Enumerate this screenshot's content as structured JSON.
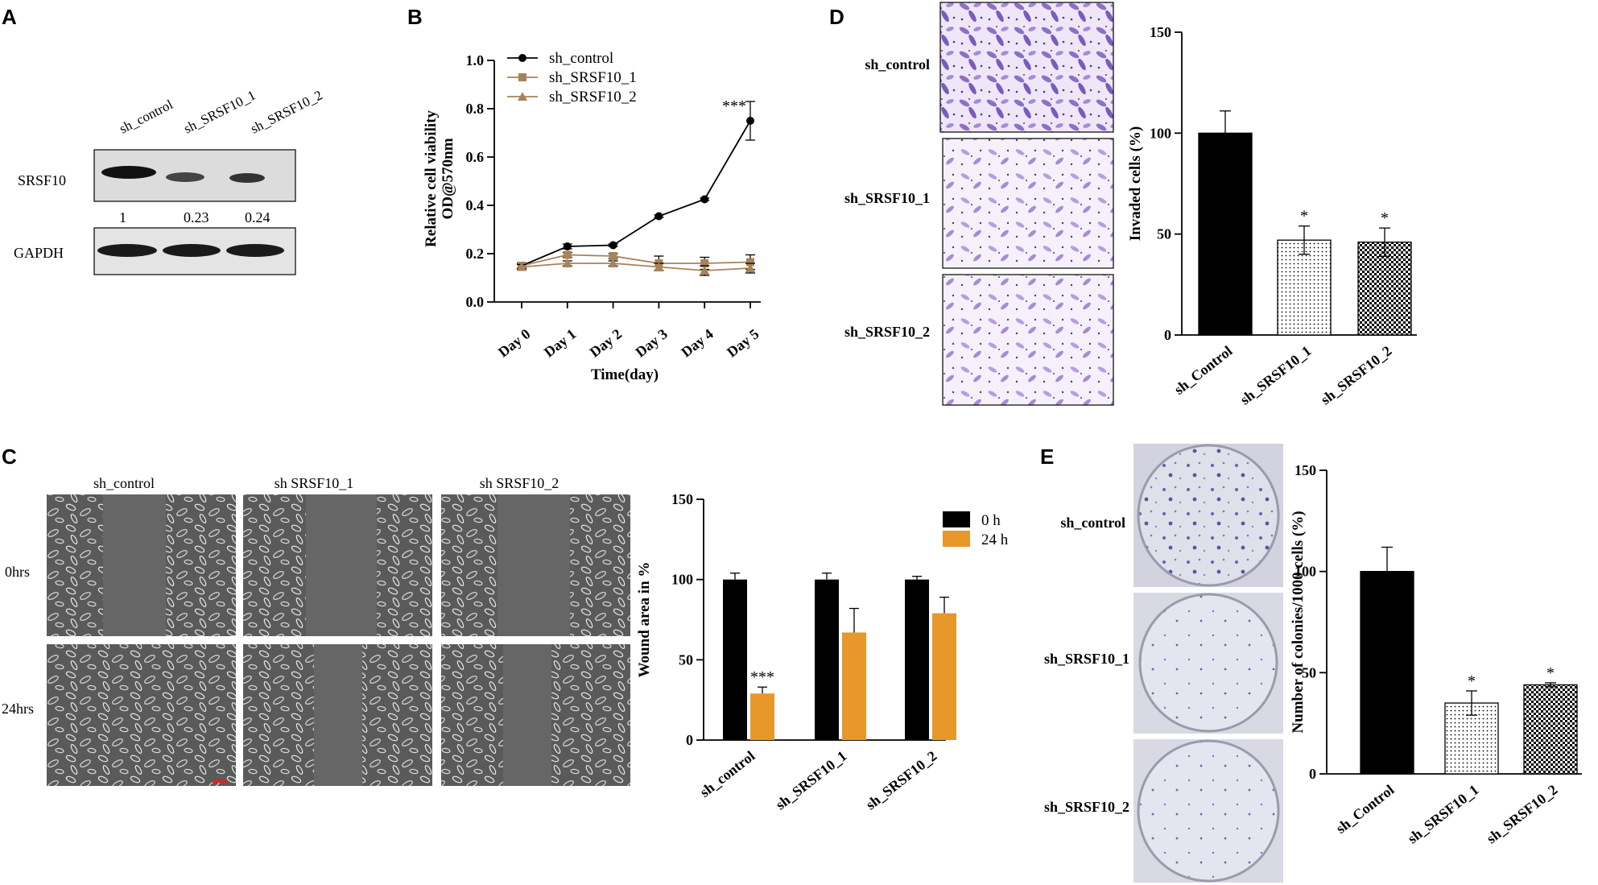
{
  "panels": {
    "A": {
      "letter": "A",
      "lanes": [
        "sh_control",
        "sh_SRSF10_1",
        "sh_SRSF10_2"
      ],
      "row1_label": "SRSF10",
      "row2_label": "GAPDH",
      "quant": [
        "1",
        "0.23",
        "0.24"
      ]
    },
    "B": {
      "letter": "B"
    },
    "C": {
      "letter": "C",
      "col_labels": [
        "sh_control",
        "sh SRSF10_1",
        "sh SRSF10_2"
      ],
      "row_labels": [
        "0hrs",
        "24hrs"
      ]
    },
    "D": {
      "letter": "D",
      "row_labels": [
        "sh_control",
        "sh_SRSF10_1",
        "sh_SRSF10_2"
      ]
    },
    "E": {
      "letter": "E",
      "row_labels": [
        "sh_control",
        "sh_SRSF10_1",
        "sh_SRSF10_2"
      ]
    }
  },
  "colors": {
    "black": "#000000",
    "orange": "#E8972A",
    "tan": "#A8825A",
    "stain": "#8E6FC8"
  },
  "chart_data": [
    {
      "id": "B",
      "type": "line",
      "xlabel": "Time(day)",
      "ylabel": "Relative cell viability",
      "ylabel2": "OD@570nm",
      "categories": [
        "Day 0",
        "Day 1",
        "Day 2",
        "Day 3",
        "Day 4",
        "Day 5"
      ],
      "ylim": [
        0,
        1.0
      ],
      "yticks": [
        "0.0",
        "0.2",
        "0.4",
        "0.6",
        "0.8",
        "1.0"
      ],
      "legend_position": "top-left",
      "series": [
        {
          "name": "sh_control",
          "marker": "circle",
          "values": [
            0.15,
            0.23,
            0.235,
            0.355,
            0.425,
            0.75
          ],
          "err": [
            0.01,
            0.01,
            0.005,
            0.005,
            0.005,
            0.08
          ]
        },
        {
          "name": "sh_SRSF10_1",
          "marker": "square",
          "values": [
            0.15,
            0.195,
            0.19,
            0.16,
            0.16,
            0.165
          ],
          "err": [
            0.01,
            0.01,
            0.01,
            0.03,
            0.025,
            0.03
          ]
        },
        {
          "name": "sh_SRSF10_2",
          "marker": "triangle",
          "values": [
            0.145,
            0.16,
            0.16,
            0.145,
            0.13,
            0.14
          ],
          "err": [
            0.01,
            0.01,
            0.01,
            0.015,
            0.02,
            0.02
          ]
        }
      ],
      "annotations": [
        {
          "text": "***",
          "at": "Day 5"
        }
      ]
    },
    {
      "id": "C",
      "type": "bar",
      "ylabel": "Wound area in %",
      "categories": [
        "sh_control",
        "sh_SRSF10_1",
        "sh_SRSF10_2"
      ],
      "ylim": [
        0,
        150
      ],
      "yticks": [
        "0",
        "50",
        "100",
        "150"
      ],
      "legend_position": "top-right",
      "series": [
        {
          "name": "0 h",
          "values": [
            100,
            100,
            100
          ],
          "err": [
            4,
            4,
            2
          ]
        },
        {
          "name": "24 h",
          "values": [
            29,
            67,
            79
          ],
          "err": [
            4,
            15,
            10
          ]
        }
      ],
      "annotations": [
        {
          "text": "***",
          "at": "sh_control"
        }
      ]
    },
    {
      "id": "D",
      "type": "bar",
      "ylabel": "Invaded cells (%)",
      "categories": [
        "sh_Control",
        "sh_SRSF10_1",
        "sh_SRSF10_2"
      ],
      "ylim": [
        0,
        150
      ],
      "yticks": [
        "0",
        "50",
        "100",
        "150"
      ],
      "values": [
        100,
        47,
        46
      ],
      "err": [
        11,
        7,
        7
      ],
      "annotations": [
        "",
        "*",
        "*"
      ]
    },
    {
      "id": "E",
      "type": "bar",
      "ylabel": "Number of colonies/1000 cells (%)",
      "categories": [
        "sh_Control",
        "sh_SRSF10_1",
        "sh_SRSF10_2"
      ],
      "ylim": [
        0,
        150
      ],
      "yticks": [
        "0",
        "50",
        "100",
        "150"
      ],
      "values": [
        100,
        35,
        44
      ],
      "err": [
        12,
        6,
        1
      ],
      "annotations": [
        "",
        "*",
        "*"
      ]
    }
  ]
}
